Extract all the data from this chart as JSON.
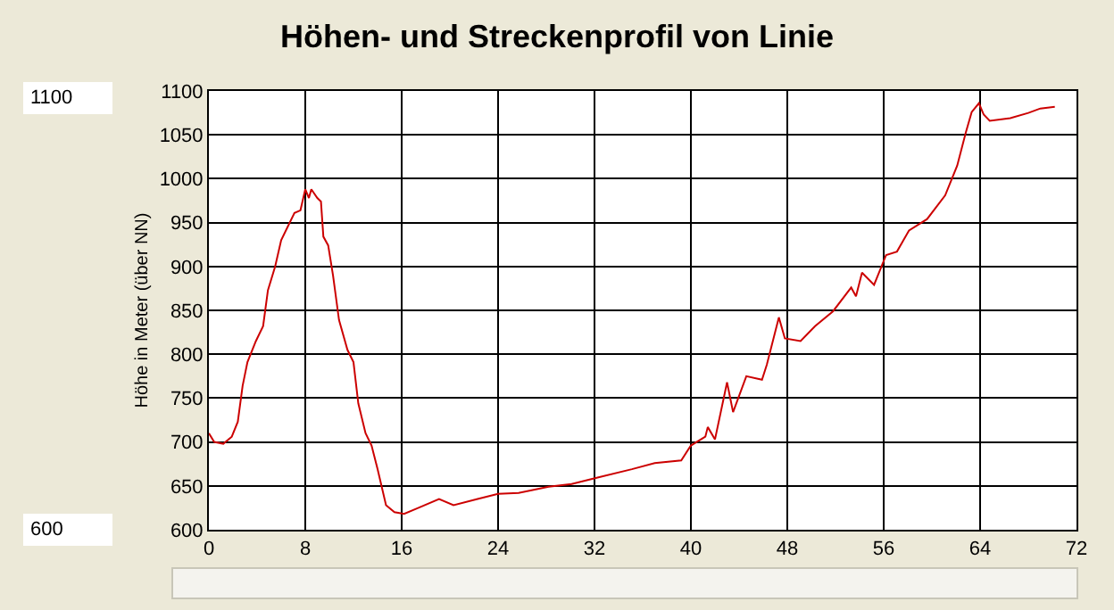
{
  "chart_data": {
    "type": "line",
    "title": "Höhen- und Streckenprofil von Linie",
    "ylabel": "Höhe in Meter (über NN)",
    "annotations": [
      "1100",
      "600"
    ],
    "xlim": [
      0,
      72
    ],
    "xticks": [
      0,
      8,
      16,
      24,
      32,
      40,
      48,
      56,
      64,
      72
    ],
    "ylim": [
      600,
      1100
    ],
    "yticks": [
      600,
      650,
      700,
      750,
      800,
      850,
      900,
      950,
      1000,
      1050,
      1100
    ],
    "grid": true,
    "marker": "none",
    "line_style": "solid",
    "series": [
      {
        "color": "#cc0000",
        "x": [
          0,
          0.44,
          1.2,
          1.9,
          2.4,
          2.8,
          3.2,
          3.9,
          4.5,
          4.9,
          5.5,
          6.0,
          7.1,
          7.6,
          8.0,
          8.3,
          8.5,
          9.0,
          9.3,
          9.5,
          9.9,
          10.3,
          10.8,
          11.5,
          12.0,
          12.4,
          13.0,
          13.5,
          14.0,
          14.7,
          15.4,
          16.2,
          17.4,
          19.1,
          20.3,
          22.3,
          24.0,
          25.7,
          28.2,
          30.1,
          32.1,
          35.1,
          37.0,
          39.2,
          40.0,
          41.2,
          41.4,
          42.0,
          43.0,
          43.5,
          44.6,
          45.9,
          46.3,
          47.3,
          47.8,
          49.1,
          50.3,
          51.8,
          53.3,
          53.7,
          54.2,
          55.2,
          56.2,
          57.1,
          58.1,
          59.6,
          61.1,
          62.1,
          62.8,
          63.3,
          63.9,
          64.3,
          64.8,
          66.5,
          68.0,
          69.0,
          70.2
        ],
        "values": [
          710,
          700,
          698,
          706,
          723,
          764,
          791,
          815,
          832,
          873,
          900,
          930,
          961,
          964,
          988,
          978,
          988,
          978,
          974,
          934,
          924,
          890,
          839,
          805,
          791,
          744,
          710,
          696,
          669,
          628,
          620,
          618,
          625,
          635,
          628,
          635,
          641,
          642,
          649,
          652,
          659,
          669,
          676,
          679,
          696,
          706,
          717,
          703,
          768,
          734,
          775,
          771,
          788,
          842,
          818,
          815,
          832,
          849,
          876,
          866,
          893,
          879,
          913,
          917,
          941,
          954,
          981,
          1015,
          1052,
          1076,
          1086,
          1073,
          1066,
          1069,
          1075,
          1080,
          1082
        ]
      }
    ]
  }
}
